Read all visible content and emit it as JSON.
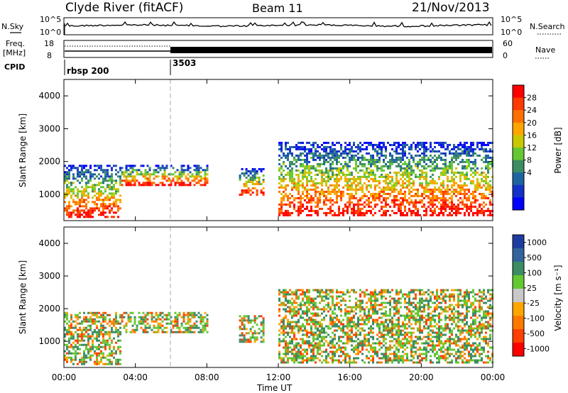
{
  "header": {
    "station": "Clyde River (fitACF)",
    "beam": "Beam 11",
    "date": "21/Nov/2013"
  },
  "summary": {
    "nsky_label": "N.Sky",
    "nsky_ticks": [
      "10^5",
      "10^0"
    ],
    "nsearch_label": "N.Search",
    "nsearch_ticks": [
      "10^5",
      "10^0"
    ],
    "freq_label": "Freq.",
    "freq_unit": "[MHz]",
    "freq_ticks": [
      "18",
      "8"
    ],
    "nave_label": "Nave",
    "nave_ticks": [
      "60",
      "0"
    ],
    "cpid_label": "CPID",
    "cpid_segments": [
      {
        "label": "rbsp 200",
        "start": "00:00"
      },
      {
        "label": "3503",
        "start": "06:00"
      }
    ]
  },
  "chart_data": [
    {
      "type": "heatmap",
      "ylabel": "Slant Range [km]",
      "yticks": [
        1000,
        2000,
        3000,
        4000
      ],
      "ylim": [
        200,
        4500
      ],
      "xticks": [
        "00:00",
        "04:00",
        "08:00",
        "12:00",
        "16:00",
        "20:00",
        "00:00"
      ],
      "xlim_hours": [
        0,
        24
      ],
      "colorbar": {
        "label": "Power [dB]",
        "ticks": [
          "28",
          "24",
          "20",
          "16",
          "12",
          "8",
          "4"
        ],
        "colors": [
          "#ff0000",
          "#ff3a00",
          "#ff7000",
          "#ffa500",
          "#c8c800",
          "#64c832",
          "#3c8c64",
          "#1e64a0",
          "#1432c8",
          "#0000ff"
        ]
      },
      "scatter_regions": [
        {
          "start_hour": 0.0,
          "end_hour": 3.2,
          "range_low": 300,
          "range_high": 1900,
          "level": "high"
        },
        {
          "start_hour": 3.2,
          "end_hour": 8.0,
          "range_low": 1300,
          "range_high": 1900,
          "level": "low"
        },
        {
          "start_hour": 9.8,
          "end_hour": 11.2,
          "range_low": 1000,
          "range_high": 1800,
          "level": "mixed"
        },
        {
          "start_hour": 12.0,
          "end_hour": 24.0,
          "range_low": 350,
          "range_high": 2600,
          "level": "high"
        }
      ]
    },
    {
      "type": "heatmap",
      "ylabel": "Slant Range [km]",
      "yticks": [
        1000,
        2000,
        3000,
        4000
      ],
      "ylim": [
        200,
        4500
      ],
      "xticks": [
        "00:00",
        "04:00",
        "08:00",
        "12:00",
        "16:00",
        "20:00",
        "00:00"
      ],
      "xlim_hours": [
        0,
        24
      ],
      "xlabel": "Time UT",
      "colorbar": {
        "label": "Velocity [m s⁻¹]",
        "ticks": [
          "1000",
          "500",
          "100",
          "25",
          "-25",
          "-100",
          "-500",
          "-1000"
        ],
        "colors": [
          "#1e3ca0",
          "#32649b",
          "#3c8c64",
          "#64c832",
          "#c8c8c8",
          "#ffa500",
          "#ff7800",
          "#ff4000",
          "#ff0000"
        ]
      },
      "scatter_regions": [
        {
          "start_hour": 0.0,
          "end_hour": 3.2,
          "range_low": 300,
          "range_high": 1900,
          "level": "mixed"
        },
        {
          "start_hour": 3.2,
          "end_hour": 8.0,
          "range_low": 1300,
          "range_high": 1900,
          "level": "mixed"
        },
        {
          "start_hour": 9.8,
          "end_hour": 11.2,
          "range_low": 1000,
          "range_high": 1800,
          "level": "negative"
        },
        {
          "start_hour": 12.0,
          "end_hour": 24.0,
          "range_low": 350,
          "range_high": 2600,
          "level": "mixed"
        }
      ]
    }
  ]
}
